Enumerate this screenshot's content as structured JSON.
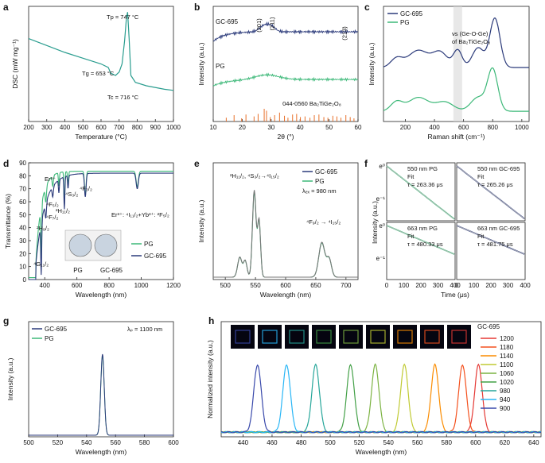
{
  "colors": {
    "navy": "#2b3a7a",
    "green": "#3cb878",
    "teal": "#2a9d8f",
    "orange": "#e8702a",
    "gray": "#777777",
    "band": "#d9d9d9"
  },
  "chart_data": [
    {
      "panel": "a",
      "type": "line",
      "xlabel": "Temperature (°C)",
      "ylabel": "DSC (mW mg⁻¹)",
      "xlim": [
        200,
        1000
      ],
      "xticks": [
        "200",
        "300",
        "400",
        "500",
        "600",
        "700",
        "800",
        "900",
        "1000"
      ],
      "annotations": [
        "Tₚ = 747 °C",
        "Tᵍ = 653 °C",
        "Tₓ = 716 °C"
      ],
      "ann_tp": "Tp = 747 °C",
      "ann_tg": "Tg = 653 °C",
      "ann_tc": "Tc = 716 °C",
      "series": [
        {
          "color": "#2a9d8f",
          "x": [
            200,
            300,
            400,
            500,
            600,
            640,
            653,
            680,
            700,
            716,
            730,
            740,
            747,
            755,
            765,
            790,
            850,
            950,
            1000
          ],
          "y": [
            0.72,
            0.66,
            0.6,
            0.55,
            0.5,
            0.47,
            0.42,
            0.4,
            0.43,
            0.5,
            0.7,
            0.9,
            0.95,
            0.72,
            0.4,
            0.34,
            0.31,
            0.28,
            0.27
          ]
        }
      ]
    },
    {
      "panel": "b",
      "type": "line",
      "xlabel": "2θ (°)",
      "ylabel": "Intensity (a.u.)",
      "xlim": [
        10,
        60
      ],
      "xticks": [
        "10",
        "20",
        "30",
        "40",
        "50",
        "60"
      ],
      "series": [
        {
          "name": "GC-695",
          "color": "#2b3a7a"
        },
        {
          "name": "PG",
          "color": "#3cb878"
        }
      ],
      "peak_labels": [
        "(201)",
        "(211)",
        "(213)"
      ],
      "reference": "044-0560 Ba₂TiGe₂O₈",
      "reference_peaks": [
        14.5,
        17.2,
        19.8,
        21.3,
        24.1,
        25.5,
        27.6,
        28.4,
        29.7,
        31.2,
        32.9,
        34.6,
        35.8,
        37.4,
        38.8,
        40.1,
        41.7,
        43.4,
        44.9,
        46.5,
        48.2,
        49.6,
        51.3,
        52.7,
        54.1,
        55.8,
        57.3,
        58.6
      ],
      "reference_heights": [
        0.3,
        0.5,
        0.25,
        0.55,
        0.4,
        0.6,
        1.0,
        0.85,
        0.35,
        0.5,
        0.7,
        0.45,
        0.3,
        0.55,
        0.6,
        0.35,
        0.4,
        0.3,
        0.5,
        0.55,
        0.35,
        0.3,
        0.45,
        0.4,
        0.3,
        0.5,
        0.35,
        0.25
      ]
    },
    {
      "panel": "c",
      "type": "line",
      "xlabel": "Raman shift (cm⁻¹)",
      "ylabel": "Intensity (a.u.)",
      "xlim": [
        50,
        1050
      ],
      "xticks": [
        "200",
        "400",
        "600",
        "800",
        "1000"
      ],
      "legend": [
        "GC-695",
        "PG"
      ],
      "annotation_line1": "νs (Ge-O-Ge)",
      "annotation_line2": "of Ba₂TiGe₂O₈",
      "band_x": [
        530,
        590
      ]
    },
    {
      "panel": "d",
      "type": "line",
      "xlabel": "Wavelength (nm)",
      "ylabel": "Transmittance (%)",
      "xlim": [
        300,
        1200
      ],
      "ylim": [
        0,
        90
      ],
      "xticks": [
        "400",
        "600",
        "800",
        "1000",
        "1200"
      ],
      "yticks": [
        "0",
        "10",
        "20",
        "30",
        "40",
        "50",
        "60",
        "70",
        "80",
        "90"
      ],
      "legend": [
        "PG",
        "GC-695"
      ],
      "labels": [
        "Er³⁺",
        "⁴S₃/₂",
        "⁴F₃/₂",
        "⁴F₅/₂",
        "²H₁₁/₂",
        "⁴F₇/₂",
        "²H₉/₂",
        "⁴G₁₁/₂",
        "Er³⁺: ⁴I₁₁/₂+Yb³⁺: ²F₅/₂"
      ],
      "photo_labels": [
        "PG",
        "GC-695"
      ]
    },
    {
      "panel": "e",
      "type": "line",
      "xlabel": "Wavelength (nm)",
      "ylabel": "Intensity (a.u.)",
      "xlim": [
        480,
        720
      ],
      "xticks": [
        "500",
        "550",
        "600",
        "650",
        "700"
      ],
      "legend": [
        "GC-695",
        "PG"
      ],
      "label1": "²H₁₁/₂, ⁴S₃/₂→⁴I₁₅/₂",
      "label2": "⁴F₉/₂ → ⁴I₁₅/₂",
      "lambda": "λₑₓ = 980 nm"
    },
    {
      "panel": "f",
      "type": "line",
      "xlabel": "Time (μs)",
      "ylabel": "Intensity (a.u.)",
      "xticks": [
        "0",
        "100",
        "200",
        "300",
        "400"
      ],
      "subplots": [
        {
          "name": "550 nm PG",
          "tau": "τ = 263.36 μs",
          "color": "#3cb878"
        },
        {
          "name": "550 nm GC-695",
          "tau": "τ = 265.26 μs",
          "color": "#2b3a7a"
        },
        {
          "name": "663 nm PG",
          "tau": "τ = 480.33 μs",
          "color": "#3cb878"
        },
        {
          "name": "663 nm GC-695",
          "tau": "τ = 481.75 μs",
          "color": "#2b3a7a"
        }
      ],
      "fit_label": "Fit",
      "yticks_top": [
        "e⁰",
        "e⁻¹"
      ]
    },
    {
      "panel": "g",
      "type": "line",
      "xlabel": "Wavelength (nm)",
      "ylabel": "Intensity (a.u.)",
      "xlim": [
        500,
        600
      ],
      "xticks": [
        "500",
        "520",
        "540",
        "560",
        "580",
        "600"
      ],
      "legend": [
        "GC-695",
        "PG"
      ],
      "lambda": "λₚ = 1100 nm",
      "peak": 551
    },
    {
      "panel": "h",
      "type": "line",
      "xlabel": "Wavelength (nm)",
      "ylabel": "Normalized intensity (a.u.)",
      "xlim": [
        425,
        645
      ],
      "xticks": [
        "440",
        "460",
        "480",
        "500",
        "520",
        "540",
        "560",
        "580",
        "600",
        "620",
        "640"
      ],
      "legend_title": "GC-695",
      "series": [
        {
          "name": "1200",
          "peak": 602,
          "color": "#e53935"
        },
        {
          "name": "1180",
          "peak": 591,
          "color": "#f4511e"
        },
        {
          "name": "1140",
          "peak": 572,
          "color": "#fb8c00"
        },
        {
          "name": "1100",
          "peak": 551,
          "color": "#c0ca33"
        },
        {
          "name": "1060",
          "peak": 531,
          "color": "#7cb342"
        },
        {
          "name": "1020",
          "peak": 514,
          "color": "#43a047"
        },
        {
          "name": "980",
          "peak": 490,
          "color": "#26a69a"
        },
        {
          "name": "940",
          "peak": 470,
          "color": "#29b6f6"
        },
        {
          "name": "900",
          "peak": 450,
          "color": "#3949ab"
        }
      ]
    }
  ],
  "panel_letters": [
    "a",
    "b",
    "c",
    "d",
    "e",
    "f",
    "g",
    "h"
  ]
}
